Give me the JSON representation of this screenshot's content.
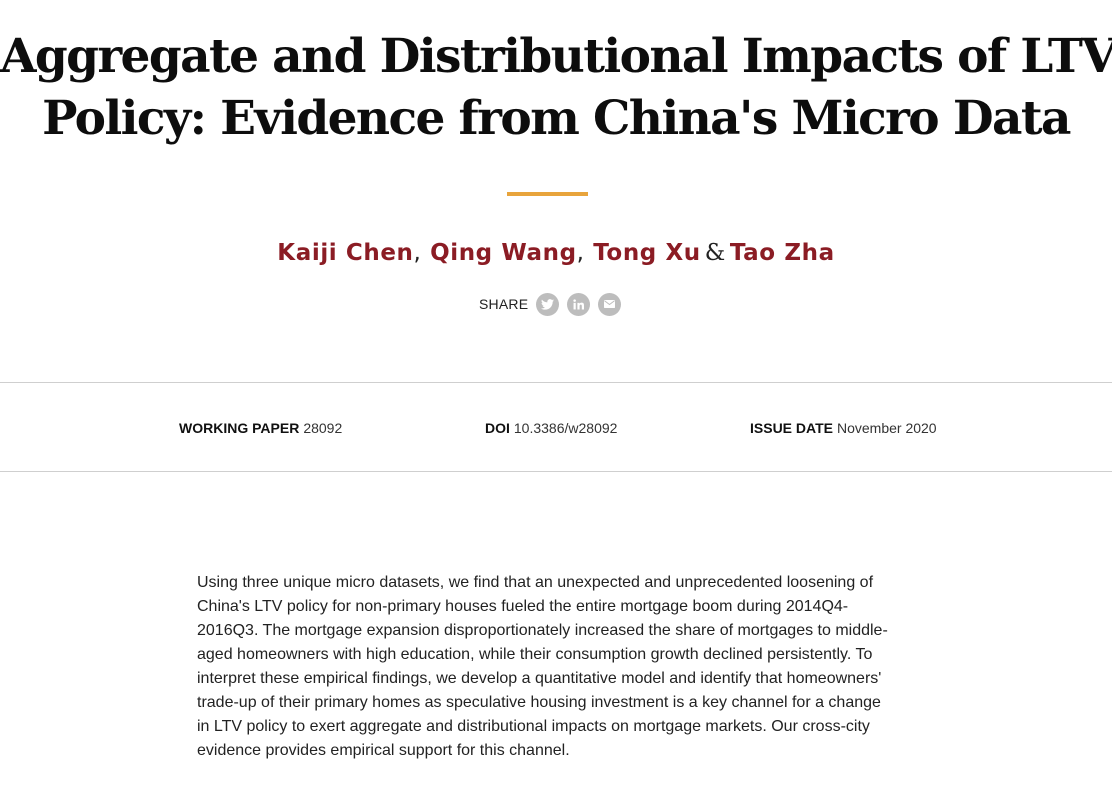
{
  "title": {
    "line1": "Aggregate and Distributional Impacts of LTV",
    "line2": "Policy: Evidence from China's Micro Data"
  },
  "authors": {
    "names": [
      "Kaiji Chen",
      "Qing Wang",
      "Tong Xu",
      "Tao Zha"
    ],
    "comma": ",",
    "ampersand": "&"
  },
  "share": {
    "label": "SHARE",
    "icons": [
      "twitter-icon",
      "linkedin-icon",
      "email-icon"
    ]
  },
  "meta": {
    "working_paper_label": "WORKING PAPER",
    "working_paper_value": "28092",
    "doi_label": "DOI",
    "doi_value": "10.3386/w28092",
    "issue_date_label": "ISSUE DATE",
    "issue_date_value": "November 2020"
  },
  "abstract": {
    "text": "Using three unique micro datasets, we find that an unexpected and unprecedented loosening of China's LTV policy for non-primary houses fueled the entire mortgage boom during 2014Q4-2016Q3. The mortgage expansion disproportionately increased the share of mortgages to middle-aged homeowners with high education, while their consumption growth declined persistently. To interpret these empirical findings, we develop a quantitative model and identify that homeowners' trade-up of their primary homes as speculative housing investment is a key channel for a change in LTV policy to exert aggregate and distributional impacts on mortgage markets. Our cross-city evidence provides empirical support for this channel."
  },
  "colors": {
    "author_link": "#8b1c24",
    "accent_rule": "#e8a43c",
    "share_icon_bg": "#bdbdbd",
    "divider": "#cfcfcf"
  }
}
